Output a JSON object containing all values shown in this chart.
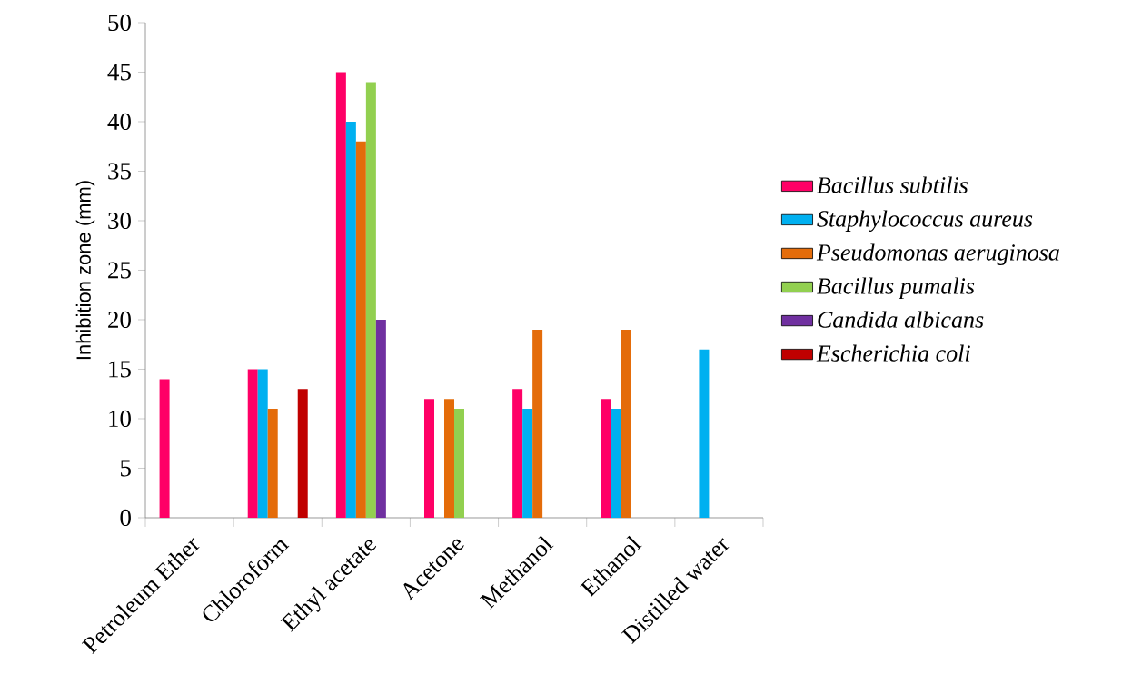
{
  "chart_data": {
    "type": "bar",
    "ylabel": "Inhibition zone (mm)",
    "categories": [
      "Petroleum Ether",
      "Chloroform",
      "Ethyl acetate",
      "Acetone",
      "Methanol",
      "Ethanol",
      "Distilled water"
    ],
    "series": [
      {
        "name": "Bacillus subtilis",
        "color": "#ff0066",
        "values": [
          14,
          15,
          45,
          12,
          13,
          12,
          null
        ]
      },
      {
        "name": "Staphylococcus aureus",
        "color": "#00b0f0",
        "values": [
          null,
          15,
          40,
          null,
          11,
          11,
          17
        ]
      },
      {
        "name": "Pseudomonas aeruginosa",
        "color": "#e46c0a",
        "values": [
          null,
          11,
          38,
          12,
          19,
          19,
          null
        ]
      },
      {
        "name": "Bacillus pumalis",
        "color": "#92d050",
        "values": [
          null,
          null,
          44,
          11,
          null,
          null,
          null
        ]
      },
      {
        "name": "Candida albicans",
        "color": "#7030a0",
        "values": [
          null,
          null,
          20,
          null,
          null,
          null,
          null
        ]
      },
      {
        "name": "Escherichia coli",
        "color": "#c00000",
        "values": [
          null,
          13,
          null,
          null,
          null,
          null,
          null
        ]
      }
    ],
    "ylim": [
      0,
      50
    ],
    "yticks": [
      0,
      5,
      10,
      15,
      20,
      25,
      30,
      35,
      40,
      45,
      50
    ],
    "grid": false,
    "legend": "right"
  }
}
